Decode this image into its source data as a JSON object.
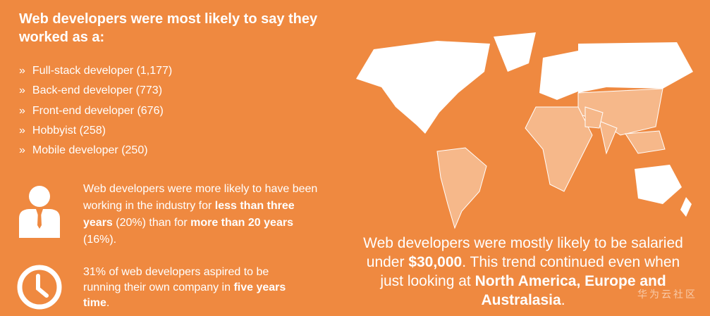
{
  "header": {
    "title": "Web developers were most likely to say they worked as a:"
  },
  "roles": {
    "bullet": "»",
    "items": [
      "Full-stack developer (1,177)",
      "Back-end developer (773)",
      "Front-end developer (676)",
      "Hobbyist (258)",
      "Mobile developer (250)"
    ]
  },
  "experience": {
    "segments": [
      {
        "text": "Web developers were more likely to have been working in the industry for ",
        "strong": false
      },
      {
        "text": "less than three years",
        "strong": true
      },
      {
        "text": " (20%) than for ",
        "strong": false
      },
      {
        "text": "more than 20 years",
        "strong": true
      },
      {
        "text": " (16%).",
        "strong": false
      }
    ]
  },
  "aspiration": {
    "segments": [
      {
        "text": "31% of web developers aspired to be running their own company in ",
        "strong": false
      },
      {
        "text": "five years time",
        "strong": true
      },
      {
        "text": ".",
        "strong": false
      }
    ]
  },
  "salary": {
    "segments": [
      {
        "text": "Web developers were mostly likely to be salaried under ",
        "strong": false
      },
      {
        "text": "$30,000",
        "strong": true
      },
      {
        "text": ". This trend continued even when just looking at ",
        "strong": false
      },
      {
        "text": "North America, Europe and Australasia",
        "strong": true
      },
      {
        "text": ".",
        "strong": false
      }
    ]
  },
  "watermark": "华为云社区"
}
